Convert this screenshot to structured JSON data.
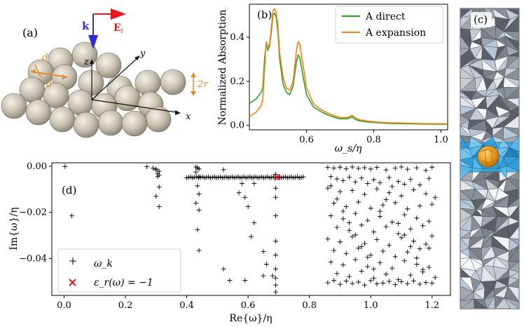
{
  "panels": {
    "a": {
      "label": "(a)",
      "axis_x": "x",
      "axis_y": "y",
      "axis_z": "z",
      "k_label": "k",
      "e_label": "E",
      "e_sub": "i",
      "d_label": "d",
      "r_label": "2r"
    },
    "c": {
      "label": "(c)"
    }
  },
  "colors": {
    "direct": "#2ca02c",
    "expansion": "#ff7f0e",
    "pole": "#000000",
    "eps": "#e8141c",
    "k_arrow": "#3030d0",
    "e_arrow": "#e8141c",
    "dim": "#e08a2a",
    "mesh_blue": "#38a8e0",
    "particle": "#e8a020"
  },
  "chart_data": [
    {
      "id": "b",
      "type": "line",
      "panel_label": "(b)",
      "title": "",
      "xlabel": "ω_s/η",
      "ylabel": "Normalized Absorption",
      "xlim": [
        0.43,
        1.02
      ],
      "ylim": [
        -0.02,
        0.55
      ],
      "xticks": [
        0.6,
        0.8,
        1.0
      ],
      "xtick_labels": [
        "0.6",
        "0.8",
        "1.0"
      ],
      "yticks": [
        0.0,
        0.2,
        0.4
      ],
      "ytick_labels": [
        "0.0",
        "0.2",
        "0.4"
      ],
      "legend": "top-right",
      "series": [
        {
          "name": "A direct",
          "color": "#2ca02c",
          "x": [
            0.43,
            0.44,
            0.45,
            0.46,
            0.465,
            0.47,
            0.475,
            0.48,
            0.485,
            0.49,
            0.495,
            0.5,
            0.505,
            0.51,
            0.515,
            0.52,
            0.53,
            0.54,
            0.55,
            0.56,
            0.57,
            0.575,
            0.58,
            0.59,
            0.6,
            0.62,
            0.64,
            0.66,
            0.68,
            0.7,
            0.72,
            0.73,
            0.735,
            0.74,
            0.75,
            0.76,
            0.78,
            0.8,
            0.85,
            0.9,
            0.95,
            1.02
          ],
          "y": [
            0.1,
            0.11,
            0.12,
            0.14,
            0.15,
            0.17,
            0.3,
            0.37,
            0.34,
            0.36,
            0.42,
            0.5,
            0.51,
            0.49,
            0.42,
            0.3,
            0.19,
            0.15,
            0.14,
            0.18,
            0.29,
            0.32,
            0.31,
            0.22,
            0.14,
            0.085,
            0.065,
            0.05,
            0.038,
            0.03,
            0.03,
            0.034,
            0.04,
            0.033,
            0.024,
            0.02,
            0.016,
            0.013,
            0.009,
            0.007,
            0.006,
            0.005
          ]
        },
        {
          "name": "A expansion",
          "color": "#ff7f0e",
          "x": [
            0.43,
            0.44,
            0.45,
            0.46,
            0.465,
            0.47,
            0.475,
            0.48,
            0.485,
            0.49,
            0.495,
            0.5,
            0.505,
            0.51,
            0.515,
            0.52,
            0.53,
            0.54,
            0.55,
            0.56,
            0.57,
            0.575,
            0.58,
            0.59,
            0.6,
            0.62,
            0.64,
            0.66,
            0.68,
            0.7,
            0.72,
            0.73,
            0.735,
            0.74,
            0.75,
            0.76,
            0.78,
            0.8,
            0.85,
            0.9,
            0.95,
            1.02
          ],
          "y": [
            0.04,
            0.05,
            0.06,
            0.08,
            0.09,
            0.12,
            0.25,
            0.38,
            0.35,
            0.37,
            0.44,
            0.52,
            0.53,
            0.51,
            0.45,
            0.33,
            0.22,
            0.17,
            0.16,
            0.2,
            0.34,
            0.38,
            0.37,
            0.27,
            0.17,
            0.1,
            0.075,
            0.058,
            0.045,
            0.036,
            0.035,
            0.04,
            0.046,
            0.04,
            0.03,
            0.025,
            0.02,
            0.016,
            0.012,
            0.01,
            0.008,
            0.007
          ]
        }
      ]
    },
    {
      "id": "d",
      "type": "scatter",
      "panel_label": "(d)",
      "title": "",
      "xlabel": "Re{ω}/η",
      "ylabel": "Im{ω}/η",
      "xlim": [
        -0.04,
        1.26
      ],
      "ylim": [
        -0.056,
        0.0015
      ],
      "xticks": [
        0.0,
        0.2,
        0.4,
        0.6,
        0.8,
        1.0,
        1.2
      ],
      "xtick_labels": [
        "0.0",
        "0.2",
        "0.4",
        "0.6",
        "0.8",
        "1.0",
        "1.2"
      ],
      "yticks": [
        0.0,
        -0.02,
        -0.04
      ],
      "ytick_labels": [
        "0.00",
        "−0.02",
        "−0.04"
      ],
      "legend": "bottom-left",
      "legend_entries": [
        {
          "name": "ω_k",
          "marker": "+",
          "color": "#000000"
        },
        {
          "name": "ε_r(ω) = −1",
          "marker": "x",
          "color": "#e8141c"
        }
      ],
      "poles_re": [
        0.003,
        0.025,
        0.27,
        0.29,
        0.3,
        0.3,
        0.31,
        0.305,
        0.31,
        0.305,
        0.31,
        0.3,
        0.31,
        0.43,
        0.435,
        0.44,
        0.43,
        0.44,
        0.435,
        0.44,
        0.43,
        0.44,
        0.435,
        0.44,
        0.52,
        0.52,
        0.58,
        0.57,
        0.59,
        0.6,
        0.62,
        0.61,
        0.65,
        0.66,
        0.68,
        0.59,
        0.69,
        0.69,
        0.69,
        0.69,
        0.69,
        0.69,
        0.69,
        0.69,
        0.69,
        0.54,
        0.62,
        0.65,
        0.69,
        0.86,
        0.88,
        0.9,
        0.92,
        0.94,
        0.96,
        0.98,
        1.0,
        1.02,
        1.05,
        1.08,
        1.1,
        1.12,
        1.15,
        1.18,
        1.2,
        0.87,
        0.89,
        0.91,
        0.93,
        0.95,
        0.97,
        0.99,
        1.01,
        1.03,
        1.06,
        1.09,
        1.11,
        1.13,
        1.16,
        1.19,
        0.86,
        0.9,
        0.94,
        0.98,
        1.02,
        1.06,
        1.1,
        1.14,
        1.18,
        1.21,
        0.88,
        0.92,
        0.96,
        1.0,
        1.04,
        1.08,
        1.12,
        1.16,
        1.2,
        0.87,
        0.91,
        0.95,
        0.99,
        1.03,
        1.07,
        1.11,
        1.15,
        1.19,
        0.89,
        0.93,
        0.97,
        1.01,
        1.05,
        1.09,
        1.13,
        1.17,
        0.86,
        0.9,
        0.94,
        0.98,
        1.02,
        1.06,
        1.1,
        1.14,
        1.18,
        1.2,
        0.88,
        0.92,
        0.96,
        1.0,
        1.04,
        1.08,
        1.12,
        1.16,
        0.87,
        0.91,
        0.95,
        0.99,
        1.03,
        1.07,
        1.11,
        1.15,
        1.19,
        0.89,
        0.93,
        0.97,
        1.01,
        1.05,
        1.09,
        1.13,
        1.17,
        1.21,
        0.86,
        0.88,
        0.9,
        0.92,
        0.94,
        0.96,
        0.98,
        1.0,
        1.02,
        1.04,
        1.06,
        1.08,
        1.1,
        1.12,
        1.14,
        1.16,
        1.18,
        1.2,
        0.87,
        0.89,
        0.91,
        0.93,
        0.95,
        0.97,
        0.99,
        1.01,
        1.03,
        1.05,
        1.07,
        1.09,
        1.11,
        1.13,
        1.15,
        1.17,
        1.19
      ],
      "poles_im": [
        -0.0001,
        -0.0215,
        -0.0002,
        -0.0008,
        -0.0012,
        -0.0016,
        -0.0022,
        -0.0032,
        -0.0038,
        -0.0045,
        -0.009,
        -0.013,
        -0.0175,
        -0.0003,
        -0.0007,
        -0.0012,
        -0.0025,
        -0.0045,
        -0.0085,
        -0.012,
        -0.016,
        -0.019,
        -0.0275,
        -0.0365,
        -0.0445,
        -0.0015,
        -0.0075,
        -0.0115,
        -0.0135,
        -0.0175,
        -0.0245,
        -0.0305,
        -0.037,
        -0.0425,
        -0.0475,
        -0.0495,
        -0.0545,
        -0.0515,
        -0.0485,
        -0.0445,
        -0.0385,
        -0.0325,
        -0.0215,
        -0.0135,
        -0.0095,
        -0.0495,
        -0.0075,
        -0.0475,
        -0.0035,
        -0.0005,
        -0.0008,
        -0.0004,
        -0.0011,
        -0.0003,
        -0.0009,
        -0.0006,
        -0.0012,
        -0.0005,
        -0.0016,
        -0.0008,
        -0.0003,
        -0.0013,
        -0.0007,
        -0.0018,
        -0.0004,
        -0.0045,
        -0.0055,
        -0.0062,
        -0.0048,
        -0.0068,
        -0.0051,
        -0.0075,
        -0.0058,
        -0.0072,
        -0.0049,
        -0.0066,
        -0.0078,
        -0.0057,
        -0.0081,
        -0.0053,
        -0.0095,
        -0.011,
        -0.0105,
        -0.0122,
        -0.0098,
        -0.0115,
        -0.0128,
        -0.0102,
        -0.0119,
        -0.0135,
        -0.016,
        -0.0175,
        -0.0155,
        -0.0182,
        -0.0168,
        -0.0158,
        -0.0185,
        -0.0172,
        -0.0165,
        -0.0215,
        -0.0228,
        -0.0205,
        -0.0235,
        -0.0218,
        -0.0242,
        -0.021,
        -0.0225,
        -0.0238,
        -0.0265,
        -0.0278,
        -0.0255,
        -0.0285,
        -0.0262,
        -0.0292,
        -0.0272,
        -0.0258,
        -0.0315,
        -0.0328,
        -0.0305,
        -0.0335,
        -0.0318,
        -0.0342,
        -0.031,
        -0.0325,
        -0.0338,
        -0.0302,
        -0.0365,
        -0.0378,
        -0.0355,
        -0.0385,
        -0.0368,
        -0.0392,
        -0.0372,
        -0.0358,
        -0.0415,
        -0.0428,
        -0.0405,
        -0.0435,
        -0.0418,
        -0.0442,
        -0.041,
        -0.0425,
        -0.0438,
        -0.0465,
        -0.0478,
        -0.0455,
        -0.0485,
        -0.0468,
        -0.0492,
        -0.0472,
        -0.0458,
        -0.0482,
        -0.0505,
        -0.0495,
        -0.0512,
        -0.0498,
        -0.0508,
        -0.0502,
        -0.0515,
        -0.0496,
        -0.051,
        -0.0506,
        -0.0499,
        -0.0513,
        -0.0501,
        -0.0509,
        -0.0497,
        -0.0511,
        -0.0504,
        -0.0507,
        -0.0085,
        -0.0142,
        -0.0195,
        -0.0245,
        -0.0298,
        -0.0348,
        -0.0395,
        -0.0445,
        -0.0195,
        -0.0145,
        -0.0088,
        -0.0248,
        -0.0298,
        -0.0348,
        -0.0398,
        -0.0448,
        -0.0355
      ],
      "band": {
        "re_start": 0.4,
        "re_end": 0.78,
        "im": -0.0048,
        "count": 60
      },
      "eps_marker": {
        "re": 0.695,
        "im": -0.0048
      }
    }
  ]
}
